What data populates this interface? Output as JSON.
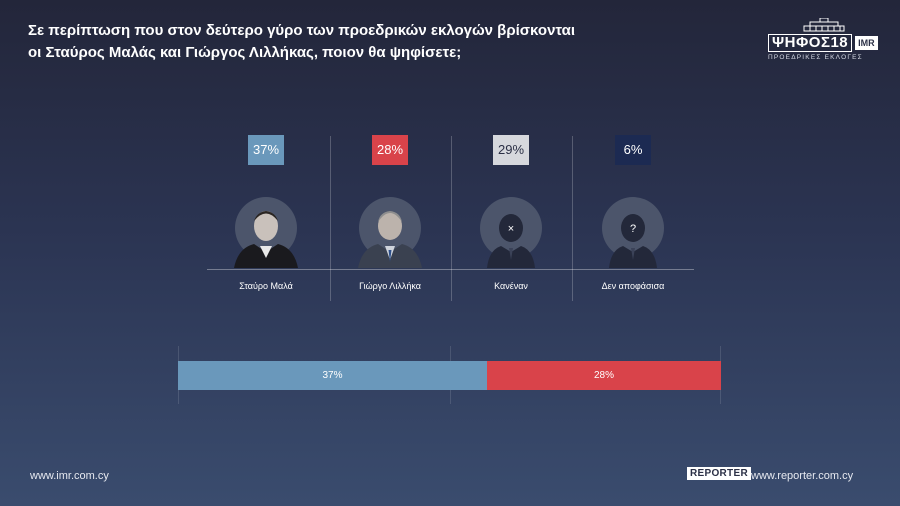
{
  "title": {
    "line1": "Σε περίπτωση που στον δεύτερο γύρο των προεδρικών εκλογών βρίσκονται",
    "line2": "οι Σταύρος Μαλάς και Γιώργος Λιλλήκας, ποιον θα ψηφίσετε;"
  },
  "logo": {
    "word": "ΨΗΦΟΣ18",
    "brand": "IMR",
    "subtitle": "ΠΡΟΕΔΡΙΚΕΣ ΕΚΛΟΓΕΣ"
  },
  "chart_data": [
    {
      "type": "bar",
      "categories": [
        "Σταύρο Μαλά",
        "Γιώργο Λιλλήκα",
        "Κανέναν",
        "Δεν αποφάσισα"
      ],
      "values": [
        37,
        28,
        29,
        6
      ],
      "labels": [
        "37%",
        "28%",
        "29%",
        "6%"
      ],
      "colors": [
        "#6a98bb",
        "#d9434a",
        "#d6d8dd",
        "#1c2a52"
      ],
      "icons": [
        "photo",
        "photo",
        "x-silhouette-icon",
        "question-silhouette-icon"
      ],
      "icon_marks": [
        "",
        "",
        "×",
        "?"
      ]
    },
    {
      "type": "bar",
      "stacked": true,
      "series": [
        {
          "values": [
            37
          ],
          "label": "37%",
          "color": "#6a98bb"
        },
        {
          "values": [
            28
          ],
          "label": "28%",
          "color": "#d9434a"
        }
      ],
      "ylim": [
        0,
        65
      ]
    }
  ],
  "footer": {
    "left": "www.imr.com.cy",
    "reporter": "REPORTER",
    "right": "www.reporter.com.cy"
  }
}
